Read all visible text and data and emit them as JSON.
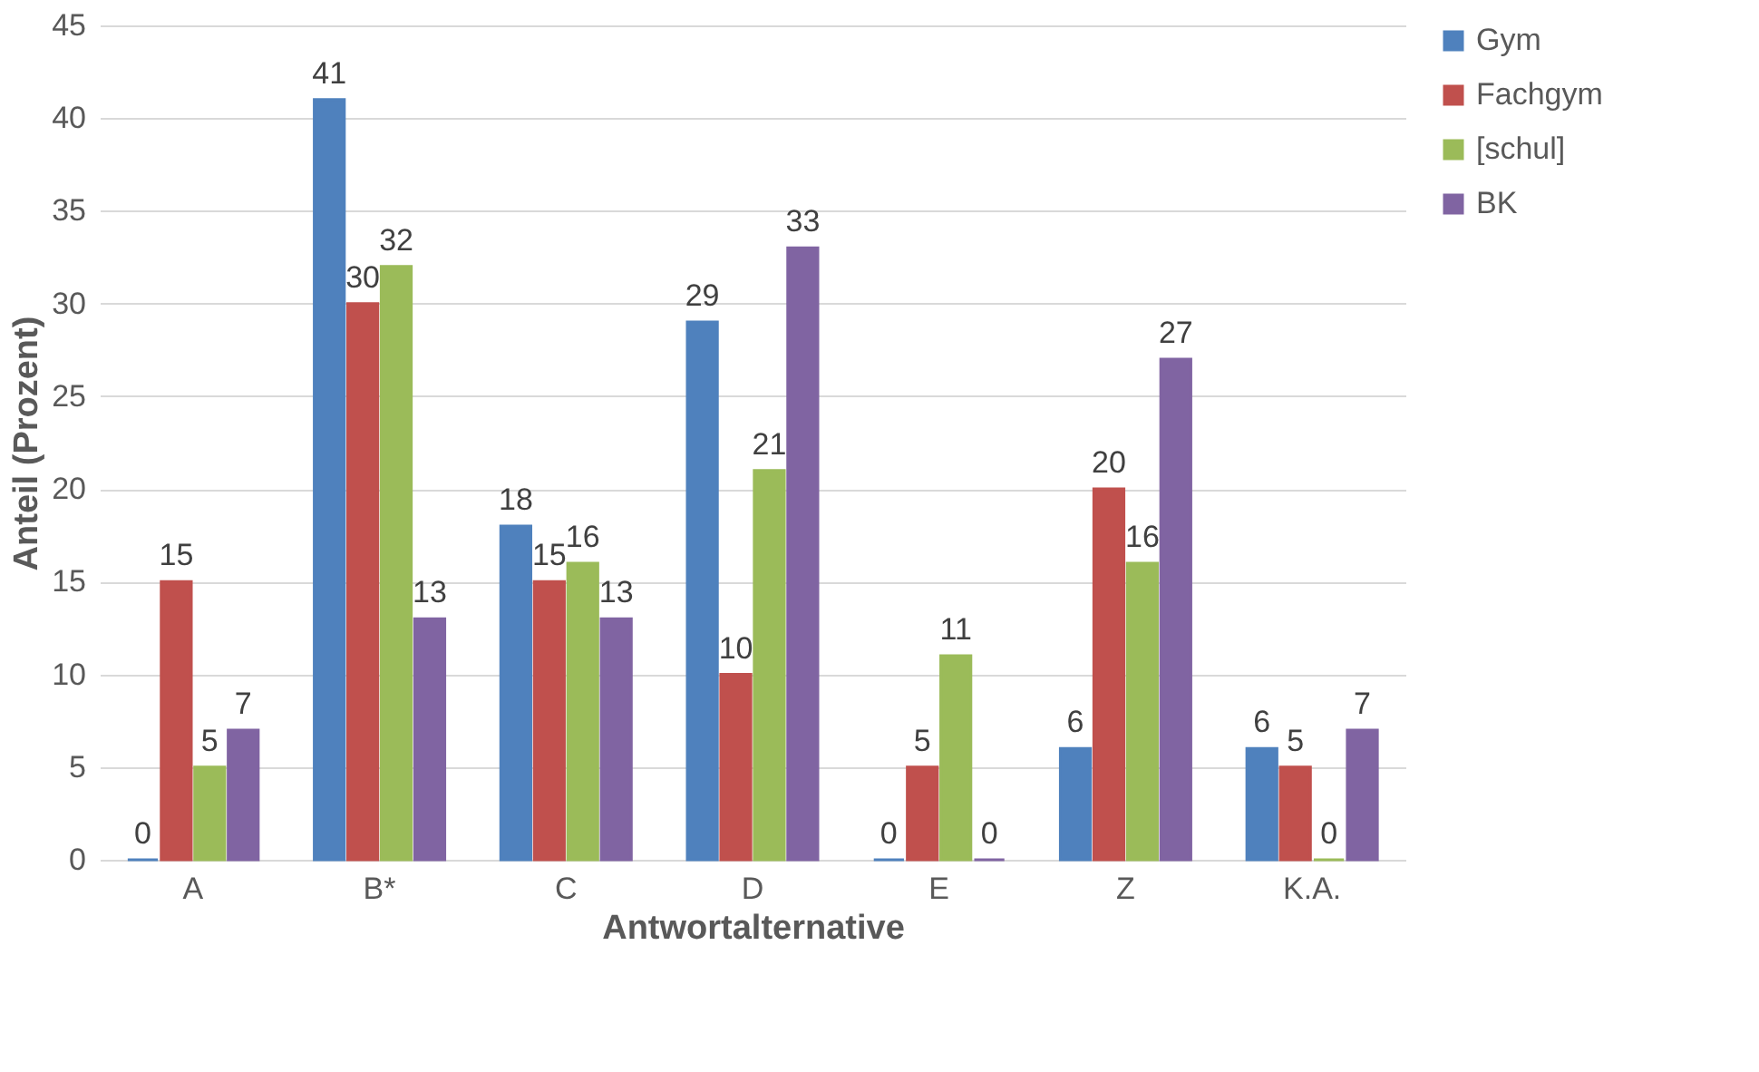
{
  "chart_data": {
    "type": "bar",
    "xlabel": "Antwortalternative",
    "ylabel": "Anteil (Prozent)",
    "categories": [
      "A",
      "B*",
      "C",
      "D",
      "E",
      "Z",
      "K.A."
    ],
    "series": [
      {
        "name": "Gym",
        "color": "#4f81bd",
        "values": [
          0,
          41,
          18,
          29,
          0,
          6,
          6
        ]
      },
      {
        "name": "Fachgym",
        "color": "#c0504d",
        "values": [
          15,
          30,
          15,
          10,
          5,
          20,
          5
        ]
      },
      {
        "name": "[schul]",
        "color": "#9bbb59",
        "values": [
          5,
          32,
          16,
          21,
          11,
          16,
          0
        ]
      },
      {
        "name": "BK",
        "color": "#8064a2",
        "values": [
          7,
          13,
          13,
          33,
          0,
          27,
          7
        ]
      }
    ],
    "ylim": [
      0,
      45
    ],
    "yticks": [
      0,
      5,
      10,
      15,
      20,
      25,
      30,
      35,
      40,
      45
    ],
    "grid": "y",
    "legend": "right",
    "data_labels": true
  }
}
